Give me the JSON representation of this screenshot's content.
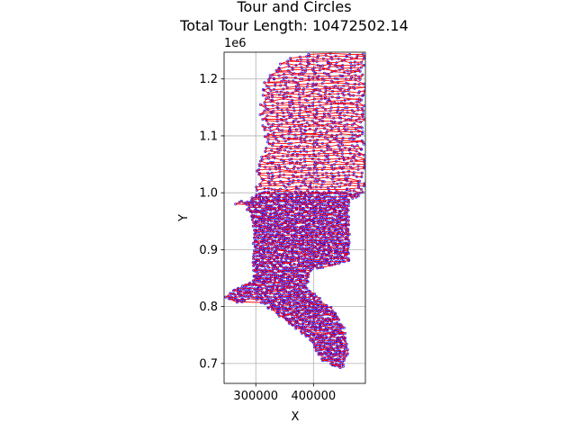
{
  "chart_data": {
    "type": "line",
    "title": "Tour and Circles",
    "subtitle": "Total Tour Length: 10472502.14",
    "xlabel": "X",
    "ylabel": "Y",
    "y_offset_label": "1e6",
    "xlim": [
      245000,
      490000
    ],
    "ylim": [
      665000,
      1247000
    ],
    "x_ticks": [
      {
        "value": 300000,
        "label": "300000"
      },
      {
        "value": 400000,
        "label": "400000"
      }
    ],
    "y_ticks": [
      {
        "value": 700000,
        "label": "0.7"
      },
      {
        "value": 800000,
        "label": "0.8"
      },
      {
        "value": 900000,
        "label": "0.9"
      },
      {
        "value": 1000000,
        "label": "1.0"
      },
      {
        "value": 1100000,
        "label": "1.1"
      },
      {
        "value": 1200000,
        "label": "1.2"
      }
    ],
    "grid": true,
    "series_colors": {
      "tour": "#ff0000",
      "circles": "#0000ff"
    },
    "tour_outline": [
      [
        257000,
        975000
      ],
      [
        300000,
        995000
      ],
      [
        300000,
        1040000
      ],
      [
        318000,
        1085000
      ],
      [
        305000,
        1140000
      ],
      [
        315000,
        1195000
      ],
      [
        340000,
        1232000
      ],
      [
        395000,
        1245000
      ],
      [
        490000,
        1245000
      ],
      [
        490000,
        1000000
      ],
      [
        462000,
        985000
      ],
      [
        462000,
        880000
      ],
      [
        420000,
        870000
      ],
      [
        392000,
        860000
      ],
      [
        392000,
        830000
      ],
      [
        435000,
        795000
      ],
      [
        455000,
        760000
      ],
      [
        462000,
        720000
      ],
      [
        450000,
        690000
      ],
      [
        415000,
        705000
      ],
      [
        390000,
        745000
      ],
      [
        365000,
        765000
      ],
      [
        330000,
        790000
      ],
      [
        295000,
        815000
      ],
      [
        270000,
        805000
      ],
      [
        245000,
        815000
      ],
      [
        262000,
        830000
      ],
      [
        295000,
        845000
      ],
      [
        295000,
        950000
      ],
      [
        275000,
        990000
      ]
    ]
  }
}
